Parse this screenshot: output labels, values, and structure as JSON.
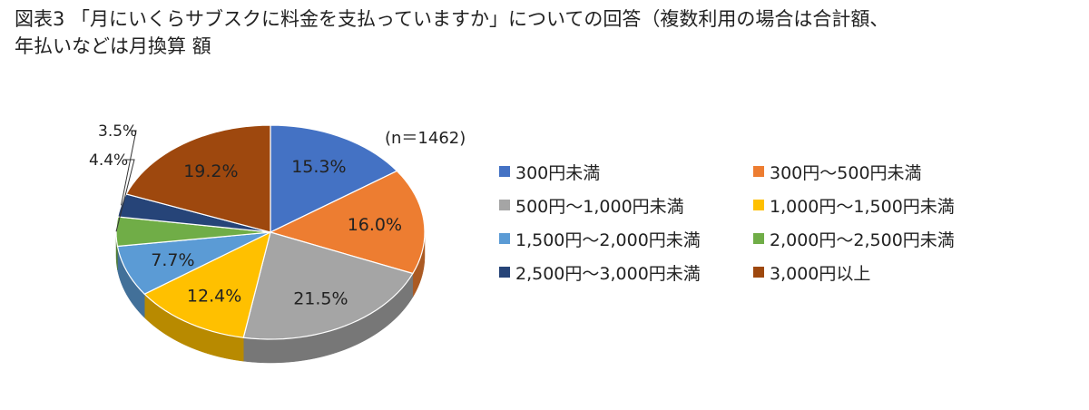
{
  "title": {
    "line1": "図表3 「月にいくらサブスクに料金を支払っていますか」についての回答（複数利用の場合は合計額、",
    "line2": "年払いなどは月換算 額"
  },
  "sample_note": "(n＝1462)",
  "chart_data": {
    "type": "pie",
    "title": "図表3 「月にいくらサブスクに料金を支払っていますか」についての回答（複数利用の場合は合計額、年払いなどは月換算 額",
    "n": "(n＝1462)",
    "legend_position": "right",
    "slices": [
      {
        "label": "300円未満",
        "value": 15.3,
        "value_label": "15.3%",
        "color": "#4472c4"
      },
      {
        "label": "300円～500円未満",
        "value": 16.0,
        "value_label": "16.0%",
        "color": "#ed7d31"
      },
      {
        "label": "500円～1,000円未満",
        "value": 21.5,
        "value_label": "21.5%",
        "color": "#a5a5a5"
      },
      {
        "label": "1,000円～1,500円未満",
        "value": 12.4,
        "value_label": "12.4%",
        "color": "#ffc000"
      },
      {
        "label": "1,500円～2,000円未満",
        "value": 7.7,
        "value_label": "7.7%",
        "color": "#5b9bd5"
      },
      {
        "label": "2,000円～2,500円未満",
        "value": 4.4,
        "value_label": "4.4%",
        "color": "#70ad47"
      },
      {
        "label": "2,500円～3,000円未満",
        "value": 3.5,
        "value_label": "3.5%",
        "color": "#264478"
      },
      {
        "label": "3,000円以上",
        "value": 19.2,
        "value_label": "19.2%",
        "color": "#9e480e"
      }
    ]
  }
}
